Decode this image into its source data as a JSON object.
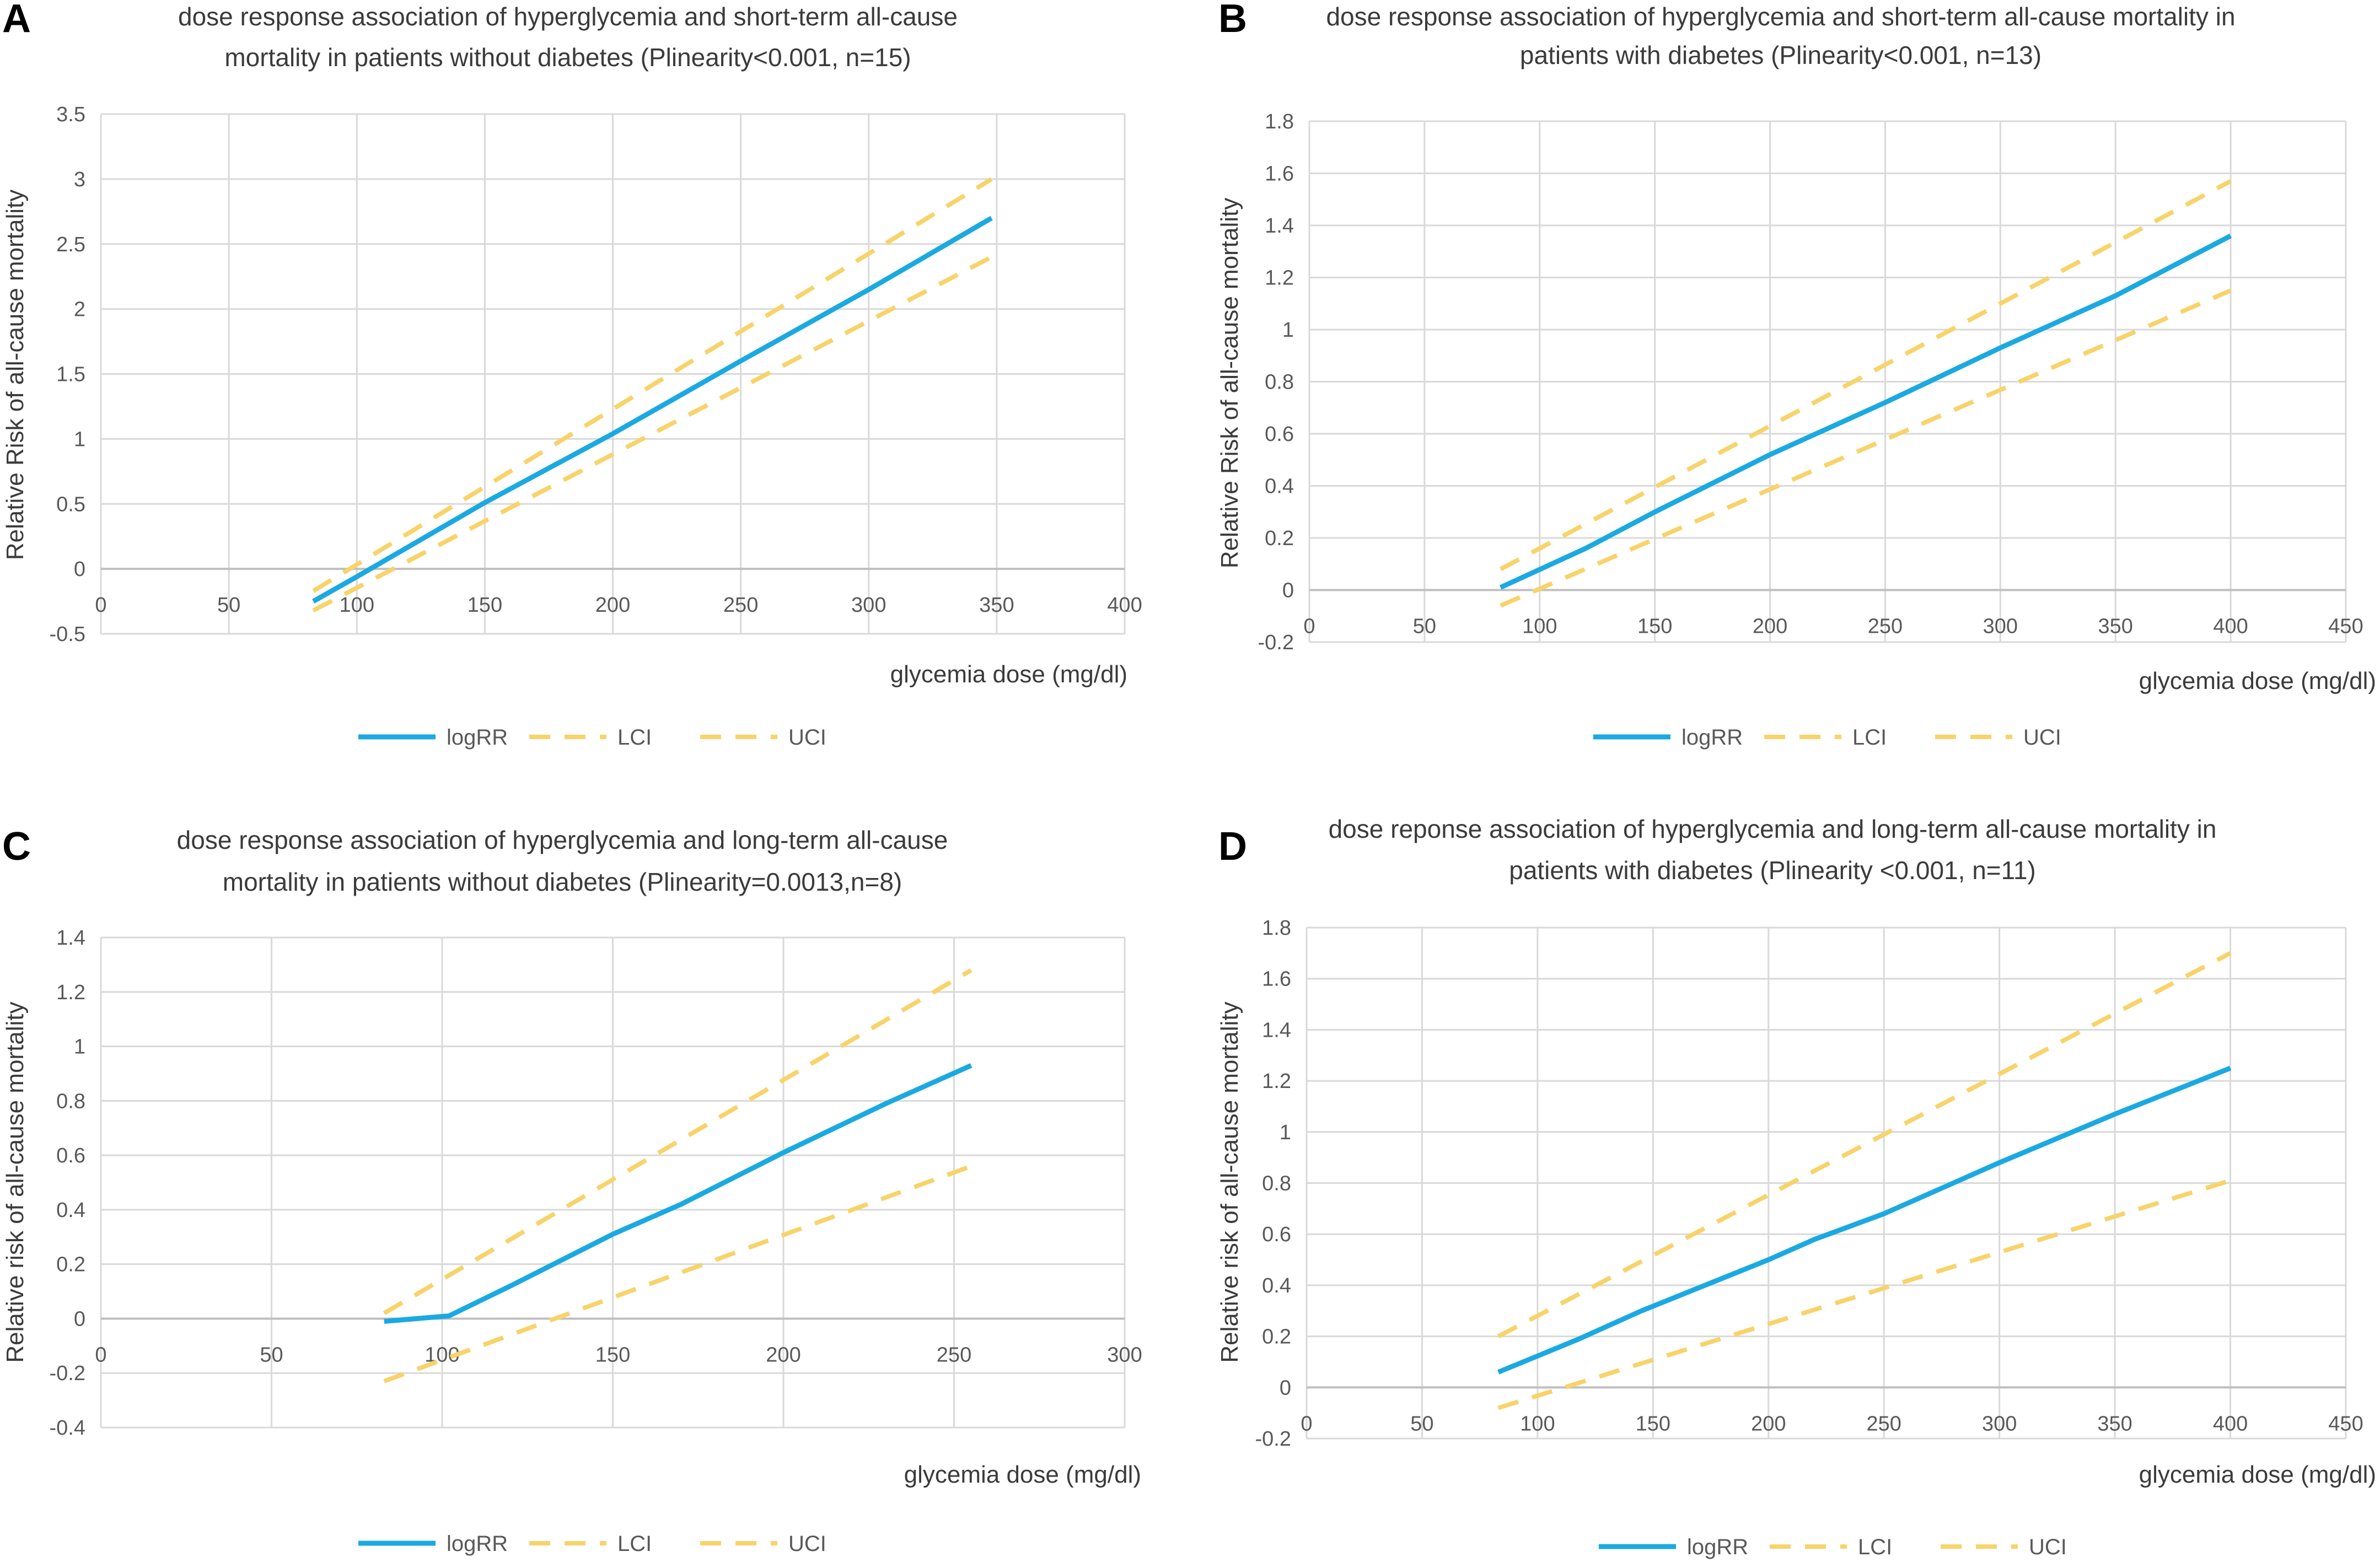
{
  "colors": {
    "logRR": "#1ba9e1",
    "ci": "#f7d36a",
    "grid": "#d9d9d9",
    "zero_axis": "#bfbfbf"
  },
  "chart_data": [
    {
      "panel": "A",
      "type": "line",
      "title_lines": [
        "dose response association of hyperglycemia and short-term all-cause",
        "mortality in patients without diabetes (Plinearity<0.001, n=15)"
      ],
      "xlabel": "glycemia dose (mg/dl)",
      "ylabel": "Relative Risk of all-cause mortality",
      "xlim": [
        0,
        400
      ],
      "ylim": [
        -0.5,
        3.5
      ],
      "x_ticks": [
        0,
        50,
        100,
        150,
        200,
        250,
        300,
        350,
        400
      ],
      "y_ticks": [
        -0.5,
        0,
        0.5,
        1,
        1.5,
        2,
        2.5,
        3,
        3.5
      ],
      "legend": [
        "logRR",
        "LCI",
        "UCI"
      ],
      "series": [
        {
          "name": "logRR",
          "style": "solid",
          "x": [
            83,
            100,
            150,
            200,
            250,
            300,
            348
          ],
          "y": [
            -0.25,
            -0.06,
            0.51,
            1.04,
            1.6,
            2.15,
            2.7
          ]
        },
        {
          "name": "LCI",
          "style": "dashed",
          "x": [
            83,
            348
          ],
          "y": [
            -0.32,
            2.4
          ]
        },
        {
          "name": "UCI",
          "style": "dashed",
          "x": [
            83,
            348
          ],
          "y": [
            -0.17,
            3.0
          ]
        }
      ]
    },
    {
      "panel": "B",
      "type": "line",
      "title_lines": [
        "dose response association of hyperglycemia and short-term all-cause mortality in",
        "patients with diabetes (Plinearity<0.001, n=13)"
      ],
      "xlabel": "glycemia dose (mg/dl)",
      "ylabel": "Relative Risk of all-cause mortality",
      "xlim": [
        0,
        450
      ],
      "ylim": [
        -0.2,
        1.8
      ],
      "x_ticks": [
        0,
        50,
        100,
        150,
        200,
        250,
        300,
        350,
        400,
        450
      ],
      "y_ticks": [
        -0.2,
        0,
        0.2,
        0.4,
        0.6,
        0.8,
        1,
        1.2,
        1.4,
        1.6,
        1.8
      ],
      "legend": [
        "logRR",
        "LCI",
        "UCI"
      ],
      "series": [
        {
          "name": "logRR",
          "style": "solid",
          "x": [
            83,
            120,
            150,
            200,
            250,
            300,
            350,
            400
          ],
          "y": [
            0.01,
            0.16,
            0.3,
            0.52,
            0.72,
            0.93,
            1.13,
            1.36
          ]
        },
        {
          "name": "LCI",
          "style": "dashed",
          "x": [
            83,
            400
          ],
          "y": [
            -0.06,
            1.15
          ]
        },
        {
          "name": "UCI",
          "style": "dashed",
          "x": [
            83,
            400
          ],
          "y": [
            0.08,
            1.57
          ]
        }
      ]
    },
    {
      "panel": "C",
      "type": "line",
      "title_lines": [
        "dose response association of hyperglycemia and long-term all-cause",
        "mortality in patients without diabetes (Plinearity=0.0013,n=8)"
      ],
      "xlabel": "glycemia dose (mg/dl)",
      "ylabel": "Relative risk of all-cause mortality",
      "xlim": [
        0,
        300
      ],
      "ylim": [
        -0.4,
        1.4
      ],
      "x_ticks": [
        0,
        50,
        100,
        150,
        200,
        250,
        300
      ],
      "y_ticks": [
        -0.4,
        -0.2,
        0,
        0.2,
        0.4,
        0.6,
        0.8,
        1,
        1.2,
        1.4
      ],
      "legend": [
        "logRR",
        "LCI",
        "UCI"
      ],
      "series": [
        {
          "name": "logRR",
          "style": "solid",
          "x": [
            83,
            102,
            120,
            150,
            170,
            200,
            230,
            255
          ],
          "y": [
            -0.01,
            0.01,
            0.12,
            0.31,
            0.42,
            0.61,
            0.79,
            0.93
          ]
        },
        {
          "name": "LCI",
          "style": "dashed",
          "x": [
            83,
            255
          ],
          "y": [
            -0.23,
            0.56
          ]
        },
        {
          "name": "UCI",
          "style": "dashed",
          "x": [
            83,
            255
          ],
          "y": [
            0.02,
            1.28
          ]
        }
      ]
    },
    {
      "panel": "D",
      "type": "line",
      "title_lines": [
        "dose reponse association of hyperglycemia and long-term all-cause mortality in",
        "patients with diabetes (Plinearity <0.001, n=11)"
      ],
      "xlabel": "glycemia dose (mg/dl)",
      "ylabel": "Relative risk of all-cause mortality",
      "xlim": [
        0,
        450
      ],
      "ylim": [
        -0.2,
        1.8
      ],
      "x_ticks": [
        0,
        50,
        100,
        150,
        200,
        250,
        300,
        350,
        400,
        450
      ],
      "y_ticks": [
        -0.2,
        0,
        0.2,
        0.4,
        0.6,
        0.8,
        1,
        1.2,
        1.4,
        1.6,
        1.8
      ],
      "legend": [
        "logRR",
        "LCI",
        "UCI"
      ],
      "series": [
        {
          "name": "logRR",
          "style": "solid",
          "x": [
            83,
            118,
            145,
            200,
            220,
            250,
            300,
            350,
            400
          ],
          "y": [
            0.06,
            0.19,
            0.3,
            0.5,
            0.58,
            0.68,
            0.88,
            1.07,
            1.25
          ]
        },
        {
          "name": "LCI",
          "style": "dashed",
          "x": [
            83,
            400
          ],
          "y": [
            -0.08,
            0.81
          ]
        },
        {
          "name": "UCI",
          "style": "dashed",
          "x": [
            83,
            400
          ],
          "y": [
            0.2,
            1.7
          ]
        }
      ]
    }
  ]
}
